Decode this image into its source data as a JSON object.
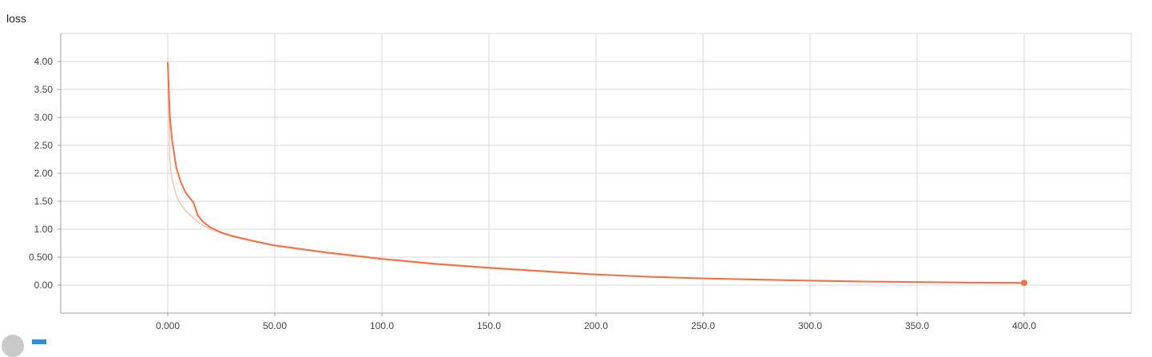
{
  "chart_data": {
    "type": "line",
    "title": "loss",
    "xlabel": "",
    "ylabel": "",
    "xlim": [
      -50,
      450
    ],
    "ylim": [
      -0.5,
      4.5
    ],
    "x_ticks": [
      "0.000",
      "50.00",
      "100.0",
      "150.0",
      "200.0",
      "250.0",
      "300.0",
      "350.0",
      "400.0"
    ],
    "x_tick_values": [
      0,
      50,
      100,
      150,
      200,
      250,
      300,
      350,
      400
    ],
    "y_ticks": [
      "0.00",
      "0.500",
      "1.00",
      "1.50",
      "2.00",
      "2.50",
      "3.00",
      "3.50",
      "4.00"
    ],
    "y_tick_values": [
      0,
      0.5,
      1.0,
      1.5,
      2.0,
      2.5,
      3.0,
      3.5,
      4.0
    ],
    "grid": true,
    "series": [
      {
        "role": "smoothed",
        "color": "#f46f43",
        "x": [
          0,
          1,
          2,
          4,
          6,
          8,
          10,
          12,
          14,
          16,
          20,
          25,
          30,
          40,
          50,
          75,
          100,
          125,
          150,
          175,
          200,
          225,
          250,
          275,
          300,
          325,
          350,
          375,
          400
        ],
        "y": [
          3.98,
          3.0,
          2.6,
          2.1,
          1.85,
          1.68,
          1.57,
          1.48,
          1.25,
          1.15,
          1.03,
          0.94,
          0.88,
          0.79,
          0.71,
          0.58,
          0.47,
          0.38,
          0.31,
          0.25,
          0.19,
          0.15,
          0.12,
          0.1,
          0.08,
          0.065,
          0.055,
          0.045,
          0.04
        ]
      },
      {
        "role": "raw",
        "color": "#f9c3ae",
        "x": [
          0,
          1,
          2,
          4,
          6,
          8,
          10,
          12,
          14,
          16,
          20,
          25,
          30,
          40,
          50,
          75,
          100,
          125,
          150,
          175,
          200,
          225,
          250,
          275,
          300,
          325,
          350,
          375,
          400
        ],
        "y": [
          3.98,
          2.2,
          1.9,
          1.6,
          1.45,
          1.35,
          1.27,
          1.2,
          1.13,
          1.08,
          1.0,
          0.93,
          0.87,
          0.78,
          0.7,
          0.57,
          0.46,
          0.37,
          0.3,
          0.24,
          0.185,
          0.145,
          0.115,
          0.095,
          0.075,
          0.06,
          0.05,
          0.04,
          0.035
        ]
      }
    ],
    "last_point": {
      "x": 400,
      "y": 0.04
    }
  }
}
